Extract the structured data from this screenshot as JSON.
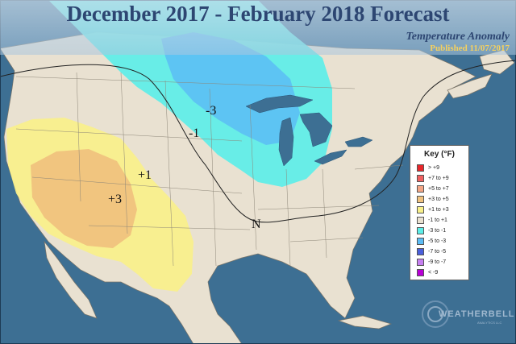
{
  "header": {
    "title": "December 2017 - February 2018 Forecast",
    "subtitle": "Temperature Anomaly",
    "published": "Published 11/07/2017"
  },
  "map_labels": {
    "minus3": "-3",
    "minus1": "-1",
    "plus1": "+1",
    "plus3": "+3",
    "neutral": "N"
  },
  "key": {
    "title": "Key (°F)",
    "items": [
      {
        "label": "> +9",
        "color": "#e8262a"
      },
      {
        "label": "+7 to +9",
        "color": "#f06060"
      },
      {
        "label": "+5 to +7",
        "color": "#f3a585"
      },
      {
        "label": "+3 to +5",
        "color": "#f0c27e"
      },
      {
        "label": "+1 to +3",
        "color": "#f8f08a"
      },
      {
        "label": "-1 to +1",
        "color": "#e9e1d1"
      },
      {
        "label": "-3 to -1",
        "color": "#5ceee8"
      },
      {
        "label": "-5 to -3",
        "color": "#5cbcf4"
      },
      {
        "label": "-7 to -5",
        "color": "#4a5fdc"
      },
      {
        "label": "-9 to -7",
        "color": "#c67ff0"
      },
      {
        "label": "< -9",
        "color": "#b800d6"
      }
    ]
  },
  "logo": {
    "text": "WEATHERBELL",
    "sub": "ANALYTICS LLC"
  },
  "colors": {
    "ocean": "#3d6f93",
    "land": "#e9e1d1",
    "title": "#2d4672",
    "published": "#f4d060"
  }
}
